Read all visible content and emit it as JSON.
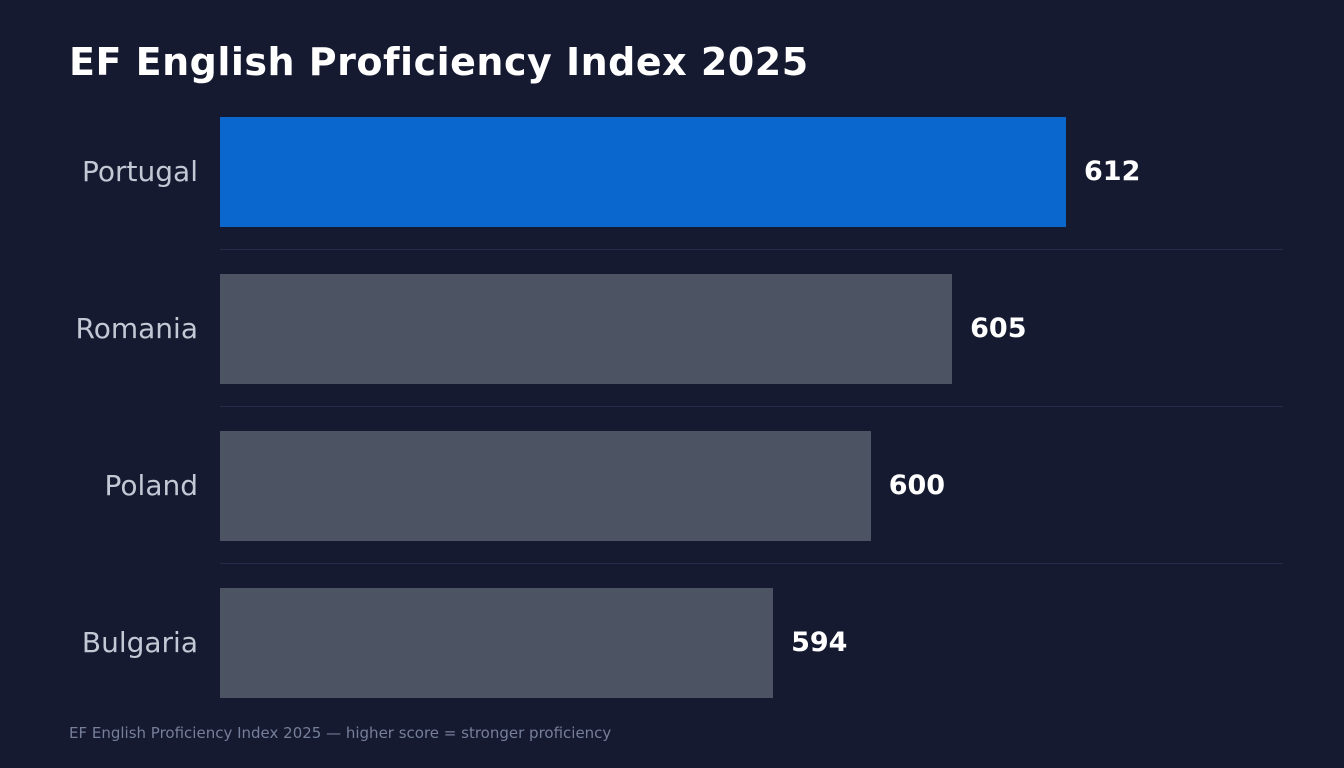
{
  "header": {
    "title": "EF English Proficiency Index 2025"
  },
  "footer": {
    "caption": "EF English Proficiency Index 2025 — higher score = stronger proficiency"
  },
  "chart_data": {
    "type": "bar",
    "orientation": "horizontal",
    "title": "EF English Proficiency Index 2025",
    "categories": [
      "Portugal",
      "Romania",
      "Poland",
      "Bulgaria"
    ],
    "values": [
      612,
      605,
      600,
      594
    ],
    "xlim": [
      560,
      612
    ],
    "grid": false,
    "legend": "none",
    "highlight_index": 0,
    "note": "higher score = stronger proficiency",
    "colors": {
      "background": "#151a31",
      "highlight_bar": "#0967cd",
      "bar": "#4c5464",
      "divider": "#262d4a",
      "category_label": "#c3c8d4",
      "value_label": "#ffffff",
      "title": "#ffffff",
      "footer": "#767f99"
    }
  }
}
